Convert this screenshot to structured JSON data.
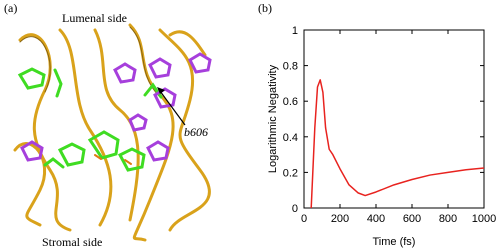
{
  "panel_a": {
    "label": "(a)",
    "top_label": "Lumenal side",
    "bottom_label": "Stromal side",
    "pointer_label": "b606"
  },
  "chart_data": {
    "type": "line",
    "panel_label": "(b)",
    "x_label": "Time (fs)",
    "y_label": "Logarithmic Negativity",
    "x": [
      40,
      60,
      75,
      90,
      105,
      120,
      140,
      160,
      200,
      250,
      300,
      340,
      400,
      500,
      600,
      700,
      800,
      900,
      1000
    ],
    "series": [
      {
        "name": "Logarithmic Negativity",
        "color": "#e8231f",
        "values": [
          0,
          0.45,
          0.68,
          0.72,
          0.65,
          0.45,
          0.33,
          0.3,
          0.22,
          0.13,
          0.085,
          0.07,
          0.09,
          0.13,
          0.16,
          0.185,
          0.2,
          0.215,
          0.225
        ]
      }
    ],
    "xlim": [
      0,
      1000
    ],
    "xticks": [
      0,
      200,
      400,
      600,
      800,
      1000
    ],
    "ylim": [
      0,
      1
    ],
    "yticks": [
      0,
      0.2,
      0.4,
      0.6,
      0.8,
      1
    ]
  }
}
